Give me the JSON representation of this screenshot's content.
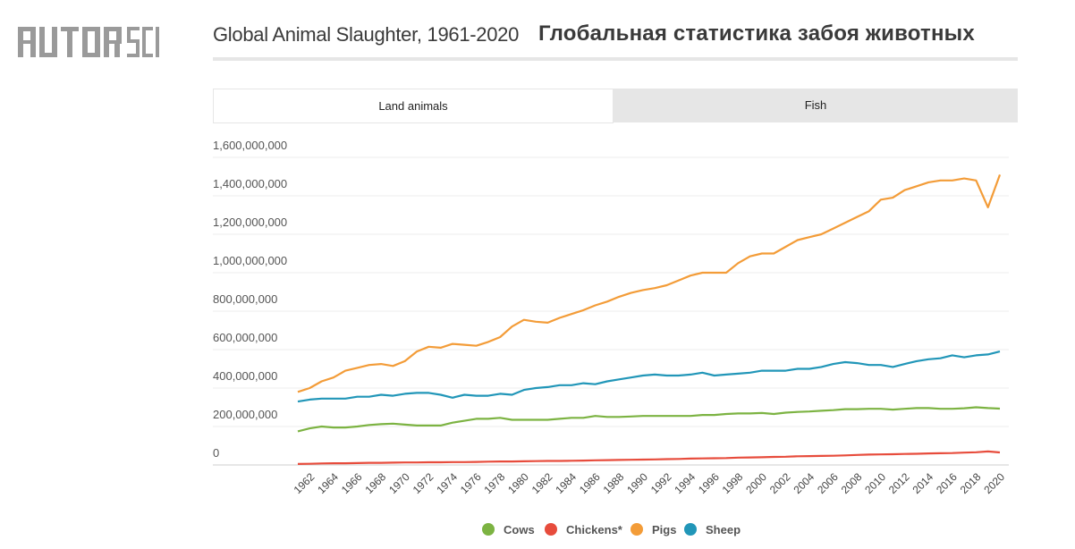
{
  "logo": {
    "text": "AUTOR SCIENCE"
  },
  "header": {
    "title_en": "Global Animal Slaughter, 1961-2020",
    "title_ru": "Глобальная статистика забоя животных"
  },
  "tabs": [
    {
      "label": "Land animals",
      "active": true
    },
    {
      "label": "Fish",
      "active": false
    }
  ],
  "legend": [
    {
      "label": "Cows",
      "color": "#7cb342"
    },
    {
      "label": "Chickens*",
      "color": "#e74c3c"
    },
    {
      "label": "Pigs",
      "color": "#f39c38"
    },
    {
      "label": "Sheep",
      "color": "#2196b8"
    }
  ],
  "chart_data": {
    "type": "line",
    "title": "Global Animal Slaughter, 1961-2020",
    "xlabel": "",
    "ylabel": "",
    "ylim": [
      0,
      1600000000
    ],
    "y_ticks": [
      0,
      200000000,
      400000000,
      600000000,
      800000000,
      1000000000,
      1200000000,
      1400000000,
      1600000000
    ],
    "y_tick_labels": [
      "0",
      "200,000,000",
      "400,000,000",
      "600,000,000",
      "800,000,000",
      "1,000,000,000",
      "1,200,000,000",
      "1,400,000,000",
      "1,600,000,000"
    ],
    "x_tick_labels": [
      "1962",
      "1964",
      "1966",
      "1968",
      "1970",
      "1972",
      "1974",
      "1976",
      "1978",
      "1980",
      "1982",
      "1984",
      "1986",
      "1988",
      "1990",
      "1992",
      "1994",
      "1996",
      "1998",
      "2000",
      "2002",
      "2004",
      "2006",
      "2008",
      "2010",
      "2012",
      "2014",
      "2016",
      "2018",
      "2020"
    ],
    "grid": true,
    "legend_position": "bottom-center",
    "x": [
      1961,
      1962,
      1963,
      1964,
      1965,
      1966,
      1967,
      1968,
      1969,
      1970,
      1971,
      1972,
      1973,
      1974,
      1975,
      1976,
      1977,
      1978,
      1979,
      1980,
      1981,
      1982,
      1983,
      1984,
      1985,
      1986,
      1987,
      1988,
      1989,
      1990,
      1991,
      1992,
      1993,
      1994,
      1995,
      1996,
      1997,
      1998,
      1999,
      2000,
      2001,
      2002,
      2003,
      2004,
      2005,
      2006,
      2007,
      2008,
      2009,
      2010,
      2011,
      2012,
      2013,
      2014,
      2015,
      2016,
      2017,
      2018,
      2019,
      2020
    ],
    "series": [
      {
        "name": "Pigs",
        "color": "#f39c38",
        "values": [
          380000000,
          400000000,
          435000000,
          455000000,
          490000000,
          505000000,
          520000000,
          525000000,
          515000000,
          540000000,
          590000000,
          615000000,
          610000000,
          630000000,
          625000000,
          620000000,
          640000000,
          665000000,
          720000000,
          755000000,
          745000000,
          740000000,
          765000000,
          785000000,
          805000000,
          830000000,
          850000000,
          875000000,
          895000000,
          910000000,
          920000000,
          935000000,
          960000000,
          985000000,
          1000000000,
          1000000000,
          1000000000,
          1050000000,
          1085000000,
          1100000000,
          1100000000,
          1135000000,
          1170000000,
          1185000000,
          1200000000,
          1230000000,
          1260000000,
          1290000000,
          1320000000,
          1380000000,
          1390000000,
          1430000000,
          1450000000,
          1470000000,
          1480000000,
          1480000000,
          1490000000,
          1480000000,
          1340000000,
          1510000000
        ]
      },
      {
        "name": "Sheep",
        "color": "#2196b8",
        "values": [
          330000000,
          340000000,
          345000000,
          345000000,
          345000000,
          355000000,
          355000000,
          365000000,
          360000000,
          370000000,
          375000000,
          375000000,
          365000000,
          350000000,
          365000000,
          360000000,
          360000000,
          370000000,
          365000000,
          390000000,
          400000000,
          405000000,
          415000000,
          415000000,
          425000000,
          420000000,
          435000000,
          445000000,
          455000000,
          465000000,
          470000000,
          465000000,
          465000000,
          470000000,
          480000000,
          465000000,
          470000000,
          475000000,
          480000000,
          490000000,
          490000000,
          490000000,
          500000000,
          500000000,
          510000000,
          525000000,
          535000000,
          530000000,
          520000000,
          520000000,
          510000000,
          525000000,
          540000000,
          550000000,
          555000000,
          570000000,
          560000000,
          570000000,
          575000000,
          590000000
        ]
      },
      {
        "name": "Cows",
        "color": "#7cb342",
        "values": [
          175000000,
          190000000,
          200000000,
          195000000,
          195000000,
          200000000,
          208000000,
          212000000,
          215000000,
          210000000,
          205000000,
          205000000,
          205000000,
          220000000,
          230000000,
          240000000,
          240000000,
          245000000,
          235000000,
          235000000,
          235000000,
          235000000,
          240000000,
          245000000,
          245000000,
          255000000,
          250000000,
          250000000,
          252000000,
          255000000,
          255000000,
          255000000,
          255000000,
          255000000,
          260000000,
          260000000,
          265000000,
          268000000,
          268000000,
          270000000,
          265000000,
          272000000,
          276000000,
          278000000,
          282000000,
          285000000,
          290000000,
          290000000,
          292000000,
          292000000,
          288000000,
          292000000,
          296000000,
          296000000,
          292000000,
          292000000,
          295000000,
          300000000,
          296000000,
          293000000
        ]
      },
      {
        "name": "Chickens*",
        "color": "#e74c3c",
        "values": [
          5000000,
          6000000,
          8000000,
          9000000,
          9000000,
          10000000,
          11000000,
          11000000,
          12000000,
          13000000,
          13000000,
          14000000,
          14000000,
          15000000,
          15000000,
          16000000,
          17000000,
          18000000,
          18000000,
          19000000,
          20000000,
          21000000,
          21000000,
          22000000,
          23000000,
          24000000,
          25000000,
          26000000,
          27000000,
          28000000,
          29000000,
          30000000,
          31000000,
          33000000,
          34000000,
          35000000,
          36000000,
          38000000,
          39000000,
          40000000,
          42000000,
          43000000,
          45000000,
          46000000,
          47000000,
          48000000,
          50000000,
          52000000,
          54000000,
          55000000,
          56000000,
          57000000,
          58000000,
          60000000,
          61000000,
          62000000,
          64000000,
          66000000,
          70000000,
          65000000
        ]
      }
    ]
  }
}
